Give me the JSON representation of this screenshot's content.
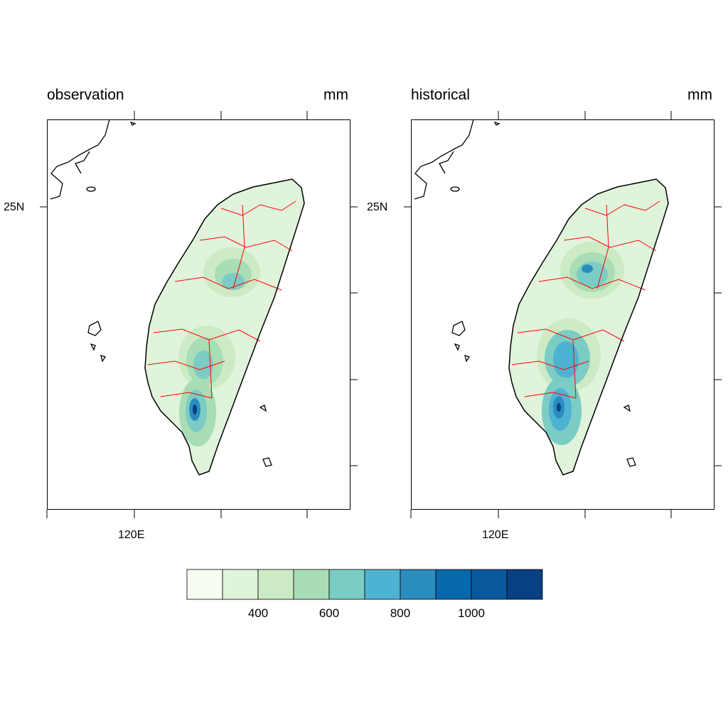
{
  "panels": [
    {
      "title": "observation",
      "units": "mm",
      "lat_label": "25N",
      "lon_label": "120E"
    },
    {
      "title": "historical",
      "units": "mm",
      "lat_label": "25N",
      "lon_label": "120E"
    }
  ],
  "colorbar": {
    "colors": [
      "#f7fcf0",
      "#e0f3db",
      "#ccebc5",
      "#a8ddb5",
      "#7bccc4",
      "#4eb3d3",
      "#2b8cbe",
      "#0868ac",
      "#08589e",
      "#084081"
    ],
    "labels": [
      "400",
      "600",
      "800",
      "1000"
    ]
  },
  "colors": {
    "coast": "#000000",
    "county_border": "#ff0000"
  }
}
